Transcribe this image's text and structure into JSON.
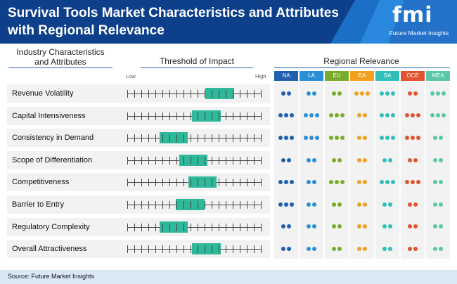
{
  "title_line1": "Survival Tools Market Characteristics and Attributes",
  "title_line2": "with Regional Relevance",
  "logo": {
    "mark": "fmi",
    "text": "Future Market Insights"
  },
  "headers": {
    "industry_line1": "Industry Characteristics",
    "industry_line2": "and Attributes",
    "threshold": "Threshold of Impact",
    "regional": "Regional Relevance",
    "low": "Low",
    "high": "High"
  },
  "regions": [
    {
      "code": "NA",
      "color": "#1f5fae"
    },
    {
      "code": "LA",
      "color": "#2a8fd6"
    },
    {
      "code": "EU",
      "color": "#7aab2d"
    },
    {
      "code": "EA",
      "color": "#f2a01f"
    },
    {
      "code": "SA",
      "color": "#2fbfb8"
    },
    {
      "code": "OCE",
      "color": "#e2532f"
    },
    {
      "code": "MEA",
      "color": "#5cc6a8"
    }
  ],
  "rows": [
    {
      "label": "Revenue Volatility",
      "bar_start": 0.585,
      "bar_end": 0.8,
      "dots": [
        2,
        2,
        2,
        3,
        3,
        2,
        3
      ]
    },
    {
      "label": "Capital Intensiveness",
      "bar_start": 0.485,
      "bar_end": 0.7,
      "dots": [
        3,
        3,
        3,
        2,
        3,
        3,
        3
      ]
    },
    {
      "label": "Consistency in Demand",
      "bar_start": 0.24,
      "bar_end": 0.455,
      "dots": [
        3,
        3,
        3,
        2,
        3,
        3,
        2
      ]
    },
    {
      "label": "Scope of Differentiation",
      "bar_start": 0.39,
      "bar_end": 0.6,
      "dots": [
        2,
        2,
        2,
        2,
        2,
        2,
        2
      ]
    },
    {
      "label": "Competitiveness",
      "bar_start": 0.46,
      "bar_end": 0.67,
      "dots": [
        3,
        2,
        3,
        2,
        3,
        3,
        2
      ]
    },
    {
      "label": "Barrier to Entry",
      "bar_start": 0.365,
      "bar_end": 0.58,
      "dots": [
        3,
        2,
        2,
        2,
        2,
        2,
        2
      ]
    },
    {
      "label": "Regulatory Complexity",
      "bar_start": 0.24,
      "bar_end": 0.455,
      "dots": [
        2,
        2,
        2,
        2,
        2,
        2,
        2
      ]
    },
    {
      "label": "Overall Attractiveness",
      "bar_start": 0.485,
      "bar_end": 0.7,
      "dots": [
        2,
        2,
        2,
        2,
        2,
        2,
        2
      ]
    }
  ],
  "source": "Source: Future Market Insights"
}
